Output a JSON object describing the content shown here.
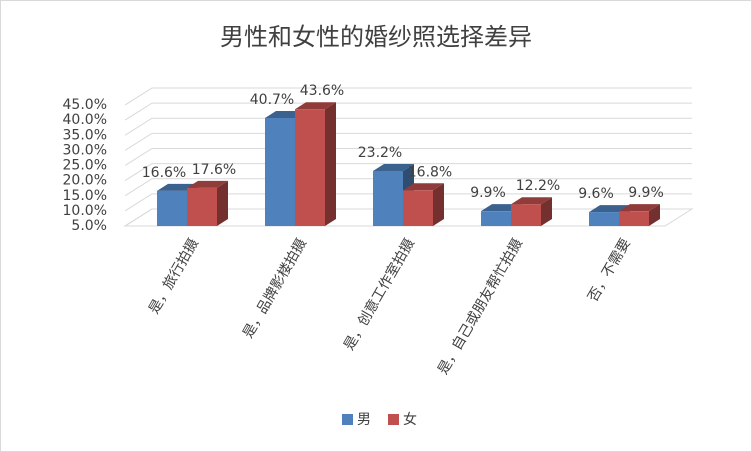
{
  "chart_data": {
    "type": "bar3d",
    "title": "男性和女性的婚纱照选择差异",
    "categories": [
      "是，旅行拍摄",
      "是，品牌影楼拍摄",
      "是，创意工作室拍摄",
      "是，自己或朋友帮忙拍摄",
      "否，不需要"
    ],
    "series": [
      {
        "name": "男",
        "color": "#4f81bd",
        "values": [
          16.6,
          40.7,
          23.2,
          9.9,
          9.6
        ],
        "value_labels": [
          "16.6%",
          "40.7%",
          "23.2%",
          "9.9%",
          "9.6%"
        ]
      },
      {
        "name": "女",
        "color": "#c0504d",
        "values": [
          17.6,
          43.6,
          16.8,
          12.2,
          9.9
        ],
        "value_labels": [
          "17.6%",
          "43.6%",
          "16.8%",
          "12.2%",
          "9.9%"
        ]
      }
    ],
    "ylim": [
      5,
      45
    ],
    "yticks": [
      {
        "value": 5,
        "label": "5.0%"
      },
      {
        "value": 10,
        "label": "10.0%"
      },
      {
        "value": 15,
        "label": "15.0%"
      },
      {
        "value": 20,
        "label": "20.0%"
      },
      {
        "value": 25,
        "label": "25.0%"
      },
      {
        "value": 30,
        "label": "30.0%"
      },
      {
        "value": 35,
        "label": "35.0%"
      },
      {
        "value": 40,
        "label": "40.0%"
      },
      {
        "value": 45,
        "label": "45.0%"
      }
    ],
    "grid": true,
    "legend": "bottom"
  }
}
